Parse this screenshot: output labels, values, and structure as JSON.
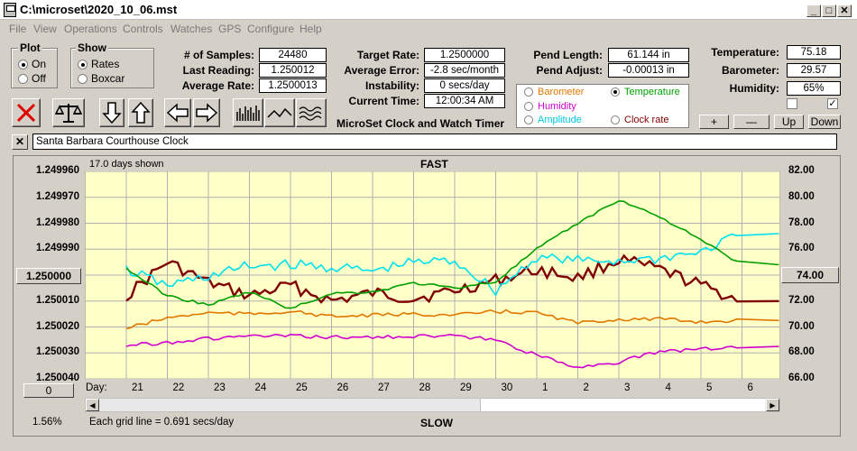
{
  "window": {
    "title": "C:\\microset\\2020_10_06.mst"
  },
  "menu": [
    "File",
    "View",
    "Operations",
    "Controls",
    "Watches",
    "GPS",
    "Configure",
    "Help"
  ],
  "plot_group": {
    "title": "Plot",
    "options": [
      "On",
      "Off"
    ],
    "selected": "On"
  },
  "show_group": {
    "title": "Show",
    "options": [
      "Rates",
      "Boxcar"
    ],
    "selected": "Rates"
  },
  "stats": {
    "samples_label": "# of Samples:",
    "samples": "24480",
    "last_label": "Last Reading:",
    "last": "1.250012",
    "avg_rate_label": "Average Rate:",
    "avg_rate": "1.2500013",
    "target_label": "Target Rate:",
    "target": "1.2500000",
    "avg_err_label": "Average Error:",
    "avg_err": "-2.8 sec/month",
    "instab_label": "Instability:",
    "instab": "0 secs/day",
    "time_label": "Current Time:",
    "time": "12:00:34 AM",
    "pend_len_label": "Pend Length:",
    "pend_len": "61.144 in",
    "pend_adj_label": "Pend Adjust:",
    "pend_adj": "-0.00013 in",
    "temp_label": "Temperature:",
    "temp": "75.18",
    "baro_label": "Barometer:",
    "baro": "29.57",
    "hum_label": "Humidity:",
    "hum": "65%"
  },
  "app_caption": "MicroSet Clock and Watch Timer",
  "sensor_options": [
    {
      "label": "Barometer",
      "color": "#e07800",
      "selected": false
    },
    {
      "label": "Temperature",
      "color": "#00a000",
      "selected": true
    },
    {
      "label": "Humidity",
      "color": "#d000d0",
      "selected": false
    },
    {
      "label": "Clock rate",
      "color": "#800000",
      "selected": false
    },
    {
      "label": "Amplitude",
      "color": "#00c8d8",
      "selected": false
    }
  ],
  "scale_buttons": {
    "plus": "+",
    "minus": "—",
    "up": "Up",
    "down": "Down"
  },
  "clock_name": "Santa Barbara Courthouse Clock",
  "chart": {
    "days_shown": "17.0 days shown",
    "top_label": "FAST",
    "bottom_label": "SLOW",
    "center_button": "1.250000",
    "right_button": "74.00",
    "left_bottom_button": "0",
    "percent": "1.56%",
    "grid_note": "Each grid line = 0.691 secs/day",
    "day_label": "Day:"
  },
  "chart_data": {
    "type": "line",
    "x": [
      21,
      22,
      23,
      24,
      25,
      26,
      27,
      28,
      29,
      30,
      1,
      2,
      3,
      4,
      5,
      6
    ],
    "y_ticks": [
      "1.249960",
      "1.249970",
      "1.249980",
      "1.249990",
      "1.250000",
      "1.250010",
      "1.250020",
      "1.250030",
      "1.250040"
    ],
    "y2_ticks": [
      "82.00",
      "80.00",
      "78.00",
      "76.00",
      "74.00",
      "72.00",
      "70.00",
      "68.00",
      "66.00"
    ],
    "series": [
      {
        "name": "Clock rate",
        "color": "#800000",
        "values": [
          1.250008,
          1.249995,
          1.250003,
          1.250008,
          1.250004,
          1.25001,
          1.250007,
          1.250009,
          1.250006,
          1.250002,
          1.249998,
          1.250001,
          1.249994,
          1.249998,
          1.250004,
          1.25001
        ]
      },
      {
        "name": "Amplitude",
        "color": "#00e0f0",
        "values": [
          74.4,
          73.2,
          73.9,
          74.7,
          74.8,
          74.6,
          74.3,
          75.0,
          75.1,
          72.8,
          75.4,
          75.1,
          75.1,
          75.3,
          75.8,
          77.2
        ]
      },
      {
        "name": "Temperature",
        "color": "#00a000",
        "values": [
          74.5,
          72.4,
          71.7,
          72.7,
          71.4,
          72.6,
          72.7,
          73.4,
          73.0,
          73.5,
          76.0,
          78.0,
          79.8,
          78.5,
          76.7,
          74.8
        ]
      },
      {
        "name": "Barometer",
        "color": "#e07800",
        "values": [
          69.9,
          70.7,
          71.1,
          71.0,
          71.2,
          70.8,
          70.9,
          71.0,
          70.9,
          71.2,
          71.1,
          70.3,
          70.6,
          70.6,
          70.4,
          70.5
        ]
      },
      {
        "name": "Humidity",
        "color": "#d000d0",
        "values": [
          68.6,
          68.8,
          69.1,
          69.3,
          69.3,
          69.2,
          69.2,
          69.3,
          69.3,
          69.0,
          67.8,
          66.9,
          67.3,
          68.1,
          68.3,
          68.5
        ]
      }
    ],
    "ylim": [
      1.24996,
      1.25004
    ],
    "y2lim": [
      66,
      82
    ]
  }
}
